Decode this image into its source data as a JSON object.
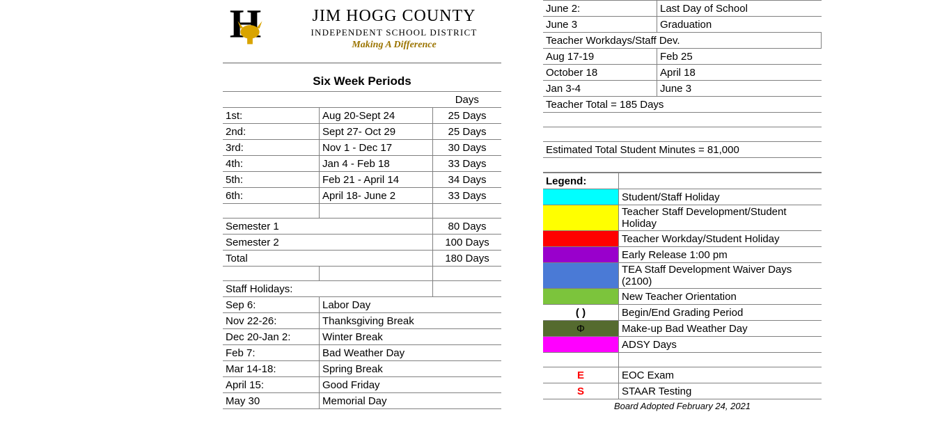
{
  "header": {
    "title": "JIM HOGG COUNTY",
    "subtitle": "INDEPENDENT SCHOOL DISTRICT",
    "tagline": "Making A Difference",
    "logo_accent": "#d9a400",
    "logo_black": "#000000"
  },
  "periods": {
    "title": "Six Week Periods",
    "days_header": "Days",
    "rows": [
      {
        "ord": "1st:",
        "range": "Aug 20-Sept 24",
        "days": "25 Days"
      },
      {
        "ord": "2nd:",
        "range": "Sept 27- Oct 29",
        "days": "25 Days"
      },
      {
        "ord": "3rd:",
        "range": "Nov 1 - Dec 17",
        "days": "30 Days"
      },
      {
        "ord": "4th:",
        "range": "Jan 4 - Feb 18",
        "days": "33 Days"
      },
      {
        "ord": "5th:",
        "range": "Feb 21 - April 14",
        "days": "34 Days"
      },
      {
        "ord": "6th:",
        "range": "April 18- June 2",
        "days": "33 Days"
      }
    ],
    "semesters": [
      {
        "label": "Semester 1",
        "days": "80 Days"
      },
      {
        "label": "Semester 2",
        "days": "100 Days"
      },
      {
        "label": "Total",
        "days": "180 Days"
      }
    ]
  },
  "staff_holidays": {
    "title": "Staff Holidays:",
    "rows": [
      {
        "date": "Sep 6:",
        "name": "Labor Day"
      },
      {
        "date": "Nov 22-26:",
        "name": "Thanksgiving Break"
      },
      {
        "date": "Dec 20-Jan 2:",
        "name": "Winter Break"
      },
      {
        "date": "Feb 7:",
        "name": "Bad Weather Day"
      },
      {
        "date": "Mar 14-18:",
        "name": "Spring Break"
      },
      {
        "date": "April 15:",
        "name": "Good Friday"
      },
      {
        "date": "May 30",
        "name": "Memorial Day"
      }
    ]
  },
  "top_right": {
    "rows": [
      {
        "date": "June 2:",
        "name": "Last Day of School"
      },
      {
        "date": "June 3",
        "name": "Graduation"
      }
    ]
  },
  "workdays": {
    "title": "Teacher Workdays/Staff Dev.",
    "rows": [
      {
        "a": "Aug 17-19",
        "b": "Feb 25"
      },
      {
        "a": "October 18",
        "b": "April 18"
      },
      {
        "a": "Jan 3-4",
        "b": "June 3"
      }
    ],
    "total": "Teacher Total = 185 Days"
  },
  "estimated": "Estimated Total Student Minutes = 81,000",
  "legend": {
    "title": "Legend:",
    "items": [
      {
        "color": "#00ffff",
        "label": "Student/Staff Holiday"
      },
      {
        "color": "#ffff00",
        "label": "Teacher Staff Development/Student Holiday"
      },
      {
        "color": "#ff0000",
        "label": "Teacher Workday/Student Holiday"
      },
      {
        "color": "#9900cc",
        "label": "Early Release 1:00 pm"
      },
      {
        "color": "#4a7ad6",
        "label": "TEA Staff Development Waiver Days (2100)"
      },
      {
        "color": "#7cc43c",
        "label": "New Teacher Orientation"
      },
      {
        "symbol": "( )",
        "label": "Begin/End Grading Period"
      },
      {
        "color": "#556b2f",
        "symbol": "Φ",
        "label": "Make-up Bad Weather Day"
      },
      {
        "color": "#ff00ff",
        "label": "ADSY Days"
      }
    ],
    "codes": [
      {
        "code": "E",
        "color": "#ff0000",
        "label": "EOC Exam"
      },
      {
        "code": "S",
        "color": "#ff0000",
        "label": "STAAR Testing"
      }
    ]
  },
  "footer": "Board Adopted February 24, 2021",
  "table": {
    "border_color": "#808080",
    "font_size": 15
  }
}
